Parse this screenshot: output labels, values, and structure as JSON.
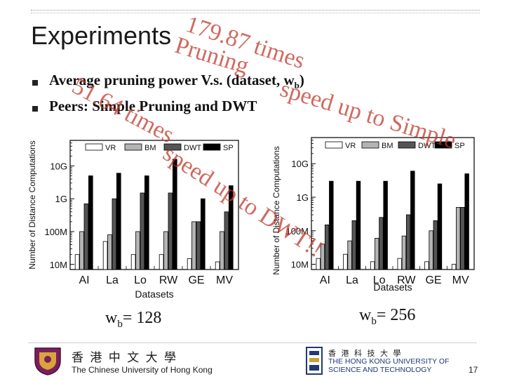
{
  "slide": {
    "title": "Experiments",
    "bullets": [
      "Average pruning power V.s. (dataset, w",
      "Peers: Simple Pruning and DWT"
    ],
    "bullet1_sub": "b",
    "bullet1_close": ")",
    "watermarks": [
      "179.87 times",
      "Pruning",
      "speed up to Simple",
      "51.64 times",
      "speed up to DWT!!"
    ],
    "captions": [
      {
        "main": "w",
        "sub": "b",
        "rest": "= 128"
      },
      {
        "main": "w",
        "sub": "b",
        "rest": "= 256"
      }
    ],
    "page_number": "17",
    "logos": {
      "cuhk_chinese": "香 港 中 文 大 學",
      "cuhk_english": "The Chinese University of Hong Kong",
      "hkust_chinese": "香 港 科 技 大 學",
      "hkust_line1": "THE HONG KONG UNIVERSITY OF",
      "hkust_line2": "SCIENCE AND TECHNOLOGY"
    },
    "colors": {
      "watermark": "#c0392b",
      "VR": "#ffffff",
      "BM": "#b4b4b4",
      "DWT": "#555555",
      "SP": "#000000"
    }
  },
  "chart_data": [
    {
      "type": "bar",
      "caption": "wb = 128",
      "xlabel": "Datasets",
      "ylabel": "Number of Distance Computations",
      "yscale": "log",
      "ylim": [
        7000000,
        60000000000
      ],
      "yticks": [
        {
          "value": 10000000,
          "label": "10M"
        },
        {
          "value": 100000000,
          "label": "100M"
        },
        {
          "value": 1000000000,
          "label": "1G"
        },
        {
          "value": 10000000000,
          "label": "10G"
        }
      ],
      "categories": [
        "AI",
        "La",
        "Lo",
        "RW",
        "GE",
        "MV"
      ],
      "legend": [
        "VR",
        "BM",
        "DWT",
        "SP"
      ],
      "series": [
        {
          "name": "VR",
          "values": [
            20000000,
            50000000,
            20000000,
            20000000,
            15000000,
            12000000
          ]
        },
        {
          "name": "BM",
          "values": [
            100000000,
            80000000,
            100000000,
            100000000,
            200000000,
            100000000
          ]
        },
        {
          "name": "DWT",
          "values": [
            700000000,
            1000000000,
            1500000000,
            1500000000,
            200000000,
            400000000
          ]
        },
        {
          "name": "SP",
          "values": [
            5000000000,
            6000000000,
            5000000000,
            16000000000,
            1000000000,
            2500000000
          ]
        }
      ]
    },
    {
      "type": "bar",
      "caption": "wb = 256",
      "xlabel": "Datasets",
      "ylabel": "Number of Distance Computations",
      "yscale": "log",
      "ylim": [
        7000000,
        60000000000
      ],
      "yticks": [
        {
          "value": 10000000,
          "label": "10M"
        },
        {
          "value": 100000000,
          "label": "100M"
        },
        {
          "value": 1000000000,
          "label": "1G"
        },
        {
          "value": 10000000000,
          "label": "10G"
        }
      ],
      "categories": [
        "AI",
        "La",
        "Lo",
        "RW",
        "GE",
        "MV"
      ],
      "legend": [
        "VR",
        "BM",
        "DWT",
        "SP"
      ],
      "series": [
        {
          "name": "VR",
          "values": [
            15000000,
            20000000,
            12000000,
            15000000,
            12000000,
            10000000
          ]
        },
        {
          "name": "BM",
          "values": [
            40000000,
            50000000,
            60000000,
            70000000,
            100000000,
            500000000
          ]
        },
        {
          "name": "DWT",
          "values": [
            150000000,
            200000000,
            250000000,
            300000000,
            200000000,
            500000000
          ]
        },
        {
          "name": "SP",
          "values": [
            3000000000,
            3000000000,
            3000000000,
            6000000000,
            2500000000,
            5000000000
          ]
        }
      ]
    }
  ]
}
